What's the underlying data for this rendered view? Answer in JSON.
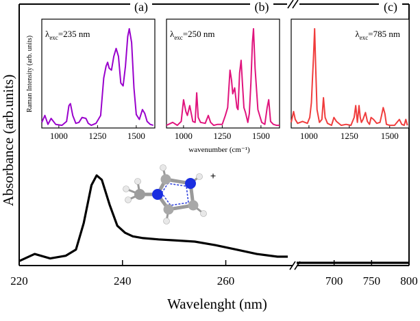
{
  "colors": {
    "panel_a": "#9900cc",
    "panel_b": "#e0147d",
    "panel_c": "#f03c3c",
    "main": "#000000"
  },
  "chart_data": [
    {
      "id": "main-absorbance",
      "type": "line",
      "xlabel": "Wavelenght (nm)",
      "ylabel": "Absorbance (arb.units)",
      "xlim_left": [
        220,
        272
      ],
      "xlim_right": [
        650,
        800
      ],
      "xticks_left": [
        220,
        240,
        260
      ],
      "xticks_right": [
        700,
        750,
        800
      ],
      "x": [
        220,
        223,
        226,
        229,
        231,
        232.5,
        234,
        235,
        236,
        237.5,
        239,
        240.5,
        242,
        244,
        247,
        250,
        254,
        258,
        262,
        266,
        270,
        272
      ],
      "y": [
        0.02,
        0.1,
        0.05,
        0.08,
        0.15,
        0.45,
        0.88,
        0.99,
        0.94,
        0.66,
        0.42,
        0.34,
        0.3,
        0.28,
        0.265,
        0.255,
        0.24,
        0.2,
        0.15,
        0.1,
        0.07,
        0.07
      ],
      "right_segment_y": 0.0
    },
    {
      "id": "raman-a",
      "panel_label": "(a)",
      "type": "line",
      "annotation": "λexc=235 nm",
      "ylabel": "Raman Intensity (arb. units)",
      "xlim": [
        890,
        1620
      ],
      "xticks": [
        1000,
        1250,
        1500
      ],
      "x": [
        890,
        910,
        930,
        950,
        980,
        1020,
        1050,
        1065,
        1075,
        1090,
        1110,
        1130,
        1150,
        1175,
        1190,
        1210,
        1240,
        1270,
        1290,
        1305,
        1315,
        1325,
        1340,
        1355,
        1370,
        1385,
        1400,
        1415,
        1430,
        1445,
        1455,
        1470,
        1485,
        1500,
        1520,
        1540,
        1555,
        1570,
        1590,
        1610
      ],
      "y": [
        0.05,
        0.12,
        0.03,
        0.09,
        0.03,
        0.02,
        0.06,
        0.22,
        0.24,
        0.12,
        0.04,
        0.05,
        0.1,
        0.09,
        0.04,
        0.02,
        0.04,
        0.12,
        0.5,
        0.62,
        0.66,
        0.6,
        0.58,
        0.72,
        0.8,
        0.72,
        0.45,
        0.42,
        0.62,
        0.92,
        1.0,
        0.86,
        0.4,
        0.13,
        0.08,
        0.18,
        0.14,
        0.06,
        0.03,
        0.02
      ]
    },
    {
      "id": "raman-b",
      "panel_label": "(b)",
      "type": "line",
      "annotation": "λexc=250 nm",
      "xlabel": "wavenumber (cm⁻¹)",
      "xlim": [
        890,
        1620
      ],
      "xticks": [
        1000,
        1250,
        1500
      ],
      "x": [
        890,
        930,
        960,
        985,
        1000,
        1015,
        1025,
        1040,
        1060,
        1075,
        1085,
        1095,
        1110,
        1140,
        1160,
        1175,
        1195,
        1220,
        1250,
        1270,
        1285,
        1300,
        1310,
        1318,
        1330,
        1345,
        1352,
        1362,
        1372,
        1380,
        1390,
        1400,
        1415,
        1425,
        1435,
        1445,
        1452,
        1462,
        1480,
        1505,
        1525,
        1540,
        1550,
        1562,
        1580,
        1600,
        1620
      ],
      "y": [
        0.02,
        0.05,
        0.02,
        0.06,
        0.28,
        0.16,
        0.12,
        0.22,
        0.06,
        0.05,
        0.35,
        0.1,
        0.05,
        0.04,
        0.12,
        0.05,
        0.02,
        0.03,
        0.03,
        0.12,
        0.2,
        0.58,
        0.48,
        0.34,
        0.4,
        0.2,
        0.18,
        0.55,
        0.68,
        0.45,
        0.2,
        0.15,
        0.05,
        0.14,
        0.45,
        0.86,
        1.0,
        0.6,
        0.18,
        0.05,
        0.03,
        0.2,
        0.28,
        0.06,
        0.03,
        0.02,
        0.02
      ]
    },
    {
      "id": "raman-c",
      "panel_label": "(c)",
      "type": "line",
      "annotation": "λexc=785 nm",
      "xlim": [
        890,
        1620
      ],
      "xticks": [
        1000,
        1250,
        1500
      ],
      "x": [
        890,
        905,
        915,
        930,
        960,
        990,
        1005,
        1015,
        1022,
        1028,
        1035,
        1042,
        1050,
        1065,
        1080,
        1090,
        1100,
        1115,
        1140,
        1155,
        1170,
        1200,
        1230,
        1260,
        1280,
        1290,
        1300,
        1310,
        1318,
        1325,
        1335,
        1350,
        1362,
        1375,
        1385,
        1400,
        1420,
        1440,
        1450,
        1460,
        1470,
        1480,
        1500,
        1530,
        1560,
        1575,
        1590,
        1600,
        1610
      ],
      "y": [
        0.05,
        0.16,
        0.08,
        0.04,
        0.06,
        0.04,
        0.1,
        0.25,
        0.5,
        0.7,
        1.0,
        0.6,
        0.18,
        0.05,
        0.08,
        0.3,
        0.1,
        0.04,
        0.02,
        0.1,
        0.06,
        0.02,
        0.03,
        0.02,
        0.1,
        0.22,
        0.05,
        0.22,
        0.1,
        0.05,
        0.08,
        0.15,
        0.06,
        0.03,
        0.1,
        0.08,
        0.04,
        0.05,
        0.12,
        0.2,
        0.14,
        0.03,
        0.02,
        0.02,
        0.08,
        0.03,
        0.02,
        0.08,
        0.02
      ]
    }
  ],
  "molecule": {
    "charge": "+"
  }
}
